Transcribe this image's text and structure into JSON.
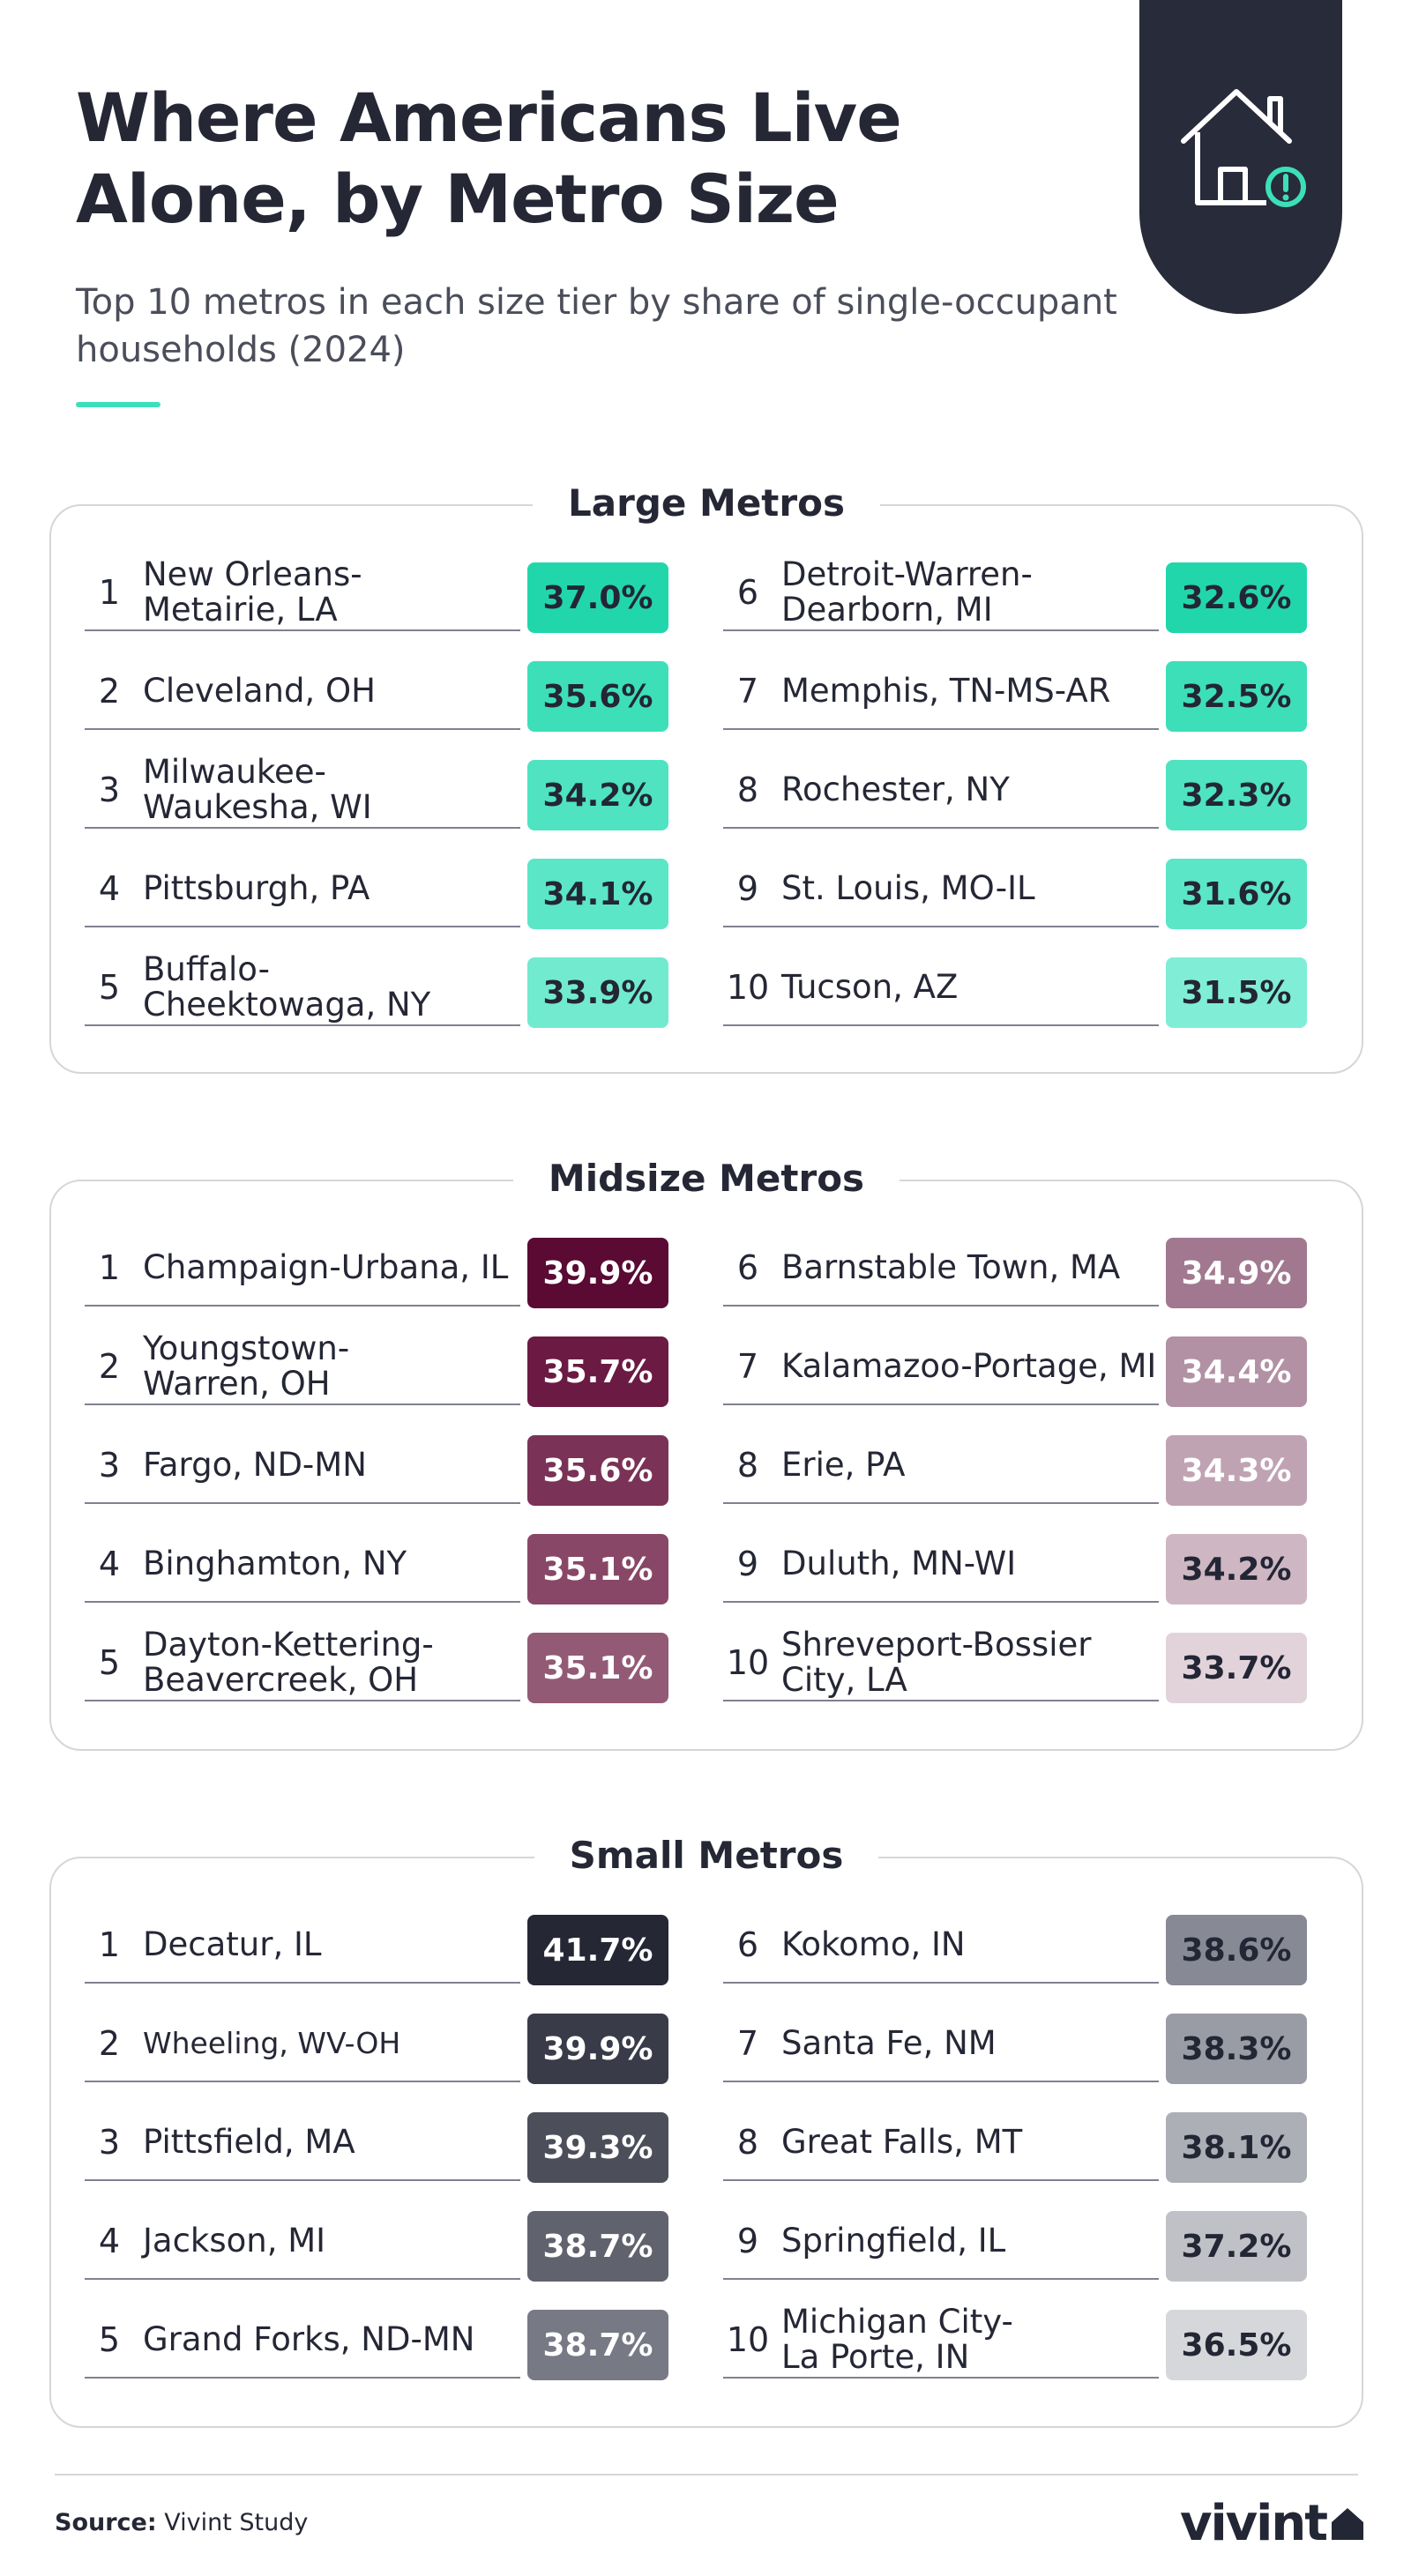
{
  "header": {
    "title": "Where Americans Live Alone, by Metro Size",
    "subtitle": "Top 10 metros in each size tier by share of single-occupant households (2024)",
    "icon": "house-alert-icon"
  },
  "sections": [
    {
      "title": "Large Metros",
      "rows": [
        {
          "rank": "1",
          "name": "New Orleans-\nMetairie, LA",
          "value": "37.0%",
          "bg": "#22d6ab",
          "fg": "#232634"
        },
        {
          "rank": "2",
          "name": "Cleveland, OH",
          "value": "35.6%",
          "bg": "#3ddfb9",
          "fg": "#232634"
        },
        {
          "rank": "3",
          "name": "Milwaukee-\nWaukesha, WI",
          "value": "34.2%",
          "bg": "#4fe3c1",
          "fg": "#232634"
        },
        {
          "rank": "4",
          "name": "Pittsburgh, PA",
          "value": "34.1%",
          "bg": "#5be6c7",
          "fg": "#232634"
        },
        {
          "rank": "5",
          "name": "Buffalo-\nCheektowaga, NY",
          "value": "33.9%",
          "bg": "#72eacf",
          "fg": "#232634"
        },
        {
          "rank": "6",
          "name": "Detroit-Warren-\nDearborn, MI",
          "value": "32.6%",
          "bg": "#22d6ab",
          "fg": "#232634"
        },
        {
          "rank": "7",
          "name": "Memphis, TN-MS-AR",
          "value": "32.5%",
          "bg": "#3ddfb9",
          "fg": "#232634"
        },
        {
          "rank": "8",
          "name": "Rochester, NY",
          "value": "32.3%",
          "bg": "#4fe3c1",
          "fg": "#232634"
        },
        {
          "rank": "9",
          "name": "St. Louis, MO-IL",
          "value": "31.6%",
          "bg": "#5be6c7",
          "fg": "#232634"
        },
        {
          "rank": "10",
          "name": "Tucson, AZ",
          "value": "31.5%",
          "bg": "#80eed6",
          "fg": "#232634"
        }
      ]
    },
    {
      "title": "Midsize Metros",
      "rows": [
        {
          "rank": "1",
          "name": "Champaign-Urbana, IL",
          "value": "39.9%",
          "bg": "#5a0a33",
          "fg": "#ffffff"
        },
        {
          "rank": "2",
          "name": "Youngstown-\nWarren, OH",
          "value": "35.7%",
          "bg": "#6b1a43",
          "fg": "#ffffff"
        },
        {
          "rank": "3",
          "name": "Fargo, ND-MN",
          "value": "35.6%",
          "bg": "#7a3256",
          "fg": "#ffffff"
        },
        {
          "rank": "4",
          "name": "Binghamton, NY",
          "value": "35.1%",
          "bg": "#884766",
          "fg": "#ffffff"
        },
        {
          "rank": "5",
          "name": "Dayton-Kettering-\nBeavercreek, OH",
          "value": "35.1%",
          "bg": "#935a76",
          "fg": "#ffffff"
        },
        {
          "rank": "6",
          "name": "Barnstable Town, MA",
          "value": "34.9%",
          "bg": "#a17890",
          "fg": "#ffffff"
        },
        {
          "rank": "7",
          "name": "Kalamazoo-Portage, MI",
          "value": "34.4%",
          "bg": "#b291a4",
          "fg": "#ffffff"
        },
        {
          "rank": "8",
          "name": "Erie, PA",
          "value": "34.3%",
          "bg": "#c0a3b3",
          "fg": "#ffffff"
        },
        {
          "rank": "9",
          "name": "Duluth, MN-WI",
          "value": "34.2%",
          "bg": "#ceb6c3",
          "fg": "#232634"
        },
        {
          "rank": "10",
          "name": "Shreveport-Bossier\nCity, LA",
          "value": "33.7%",
          "bg": "#e2d3db",
          "fg": "#232634"
        }
      ]
    },
    {
      "title": "Small Metros",
      "rows": [
        {
          "rank": "1",
          "name": "Decatur, IL",
          "value": "41.7%",
          "bg": "#252735",
          "fg": "#ffffff"
        },
        {
          "rank": "2",
          "name": "Wheeling, WV-OH",
          "value": "39.9%",
          "bg": "#393b48",
          "fg": "#ffffff",
          "small": true
        },
        {
          "rank": "3",
          "name": "Pittsfield, MA",
          "value": "39.3%",
          "bg": "#4c4e5a",
          "fg": "#ffffff"
        },
        {
          "rank": "4",
          "name": "Jackson, MI",
          "value": "38.7%",
          "bg": "#60626d",
          "fg": "#ffffff"
        },
        {
          "rank": "5",
          "name": "Grand Forks, ND-MN",
          "value": "38.7%",
          "bg": "#777985",
          "fg": "#ffffff"
        },
        {
          "rank": "6",
          "name": "Kokomo, IN",
          "value": "38.6%",
          "bg": "#878994",
          "fg": "#232634"
        },
        {
          "rank": "7",
          "name": "Santa Fe, NM",
          "value": "38.3%",
          "bg": "#9a9ca5",
          "fg": "#232634"
        },
        {
          "rank": "8",
          "name": "Great Falls, MT",
          "value": "38.1%",
          "bg": "#adafb6",
          "fg": "#232634"
        },
        {
          "rank": "9",
          "name": "Springfield, IL",
          "value": "37.2%",
          "bg": "#c0c1c7",
          "fg": "#232634"
        },
        {
          "rank": "10",
          "name": "Michigan City-\nLa Porte, IN",
          "value": "36.5%",
          "bg": "#d6d7db",
          "fg": "#232634"
        }
      ]
    }
  ],
  "footer": {
    "source_label": "Source:",
    "source_text": "Vivint Study",
    "brand": "vivint"
  },
  "colors": {
    "accent": "#3ddfb9",
    "dark": "#282b39"
  }
}
